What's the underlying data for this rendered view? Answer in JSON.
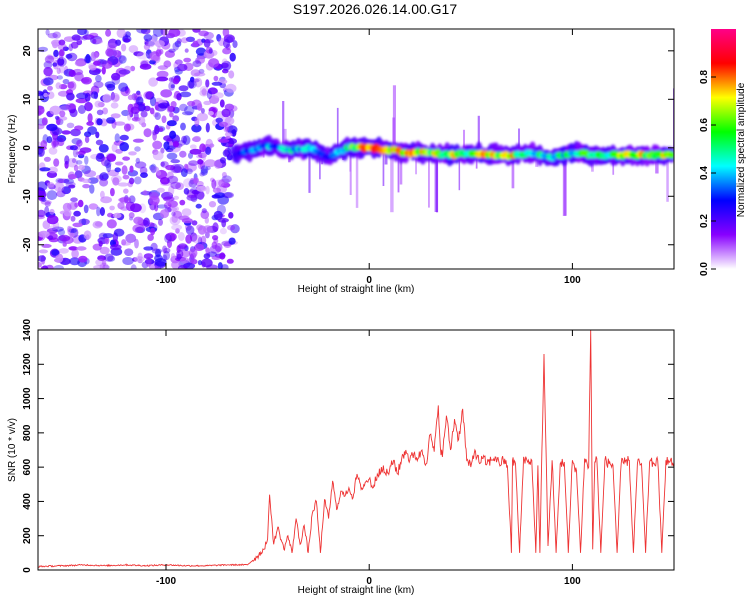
{
  "title": "S197.2026.026.14.00.G17",
  "chart_data": [
    {
      "type": "heatmap",
      "xlabel": "Height of straight line (km)",
      "ylabel": "Frequency (Hz)",
      "xlim": [
        -163,
        150
      ],
      "ylim": [
        -25,
        24.5
      ],
      "xticks": [
        "-100",
        "0",
        "100"
      ],
      "xtick_values": [
        -100,
        0,
        100
      ],
      "yticks": [
        "20",
        "10",
        "0",
        "-10",
        "-20"
      ],
      "ytick_values": [
        20,
        10,
        0,
        -10,
        -20
      ],
      "noise_region_x": [
        -163,
        -66
      ],
      "signal_track": {
        "x": [
          -66,
          -50,
          -40,
          -30,
          -20,
          -10,
          0,
          10,
          20,
          30,
          40,
          50,
          60,
          70,
          80,
          90,
          100,
          110,
          120,
          130,
          140,
          150
        ],
        "freq": [
          -1.5,
          0.5,
          -0.5,
          0,
          -2,
          0.2,
          0,
          -0.5,
          -1,
          -1,
          -1.5,
          -1,
          -1.5,
          -1.5,
          -1,
          -2,
          -1,
          -1.5,
          -1.5,
          -1.5,
          -1.5,
          -1.5
        ],
        "amplitude": [
          0.3,
          0.45,
          0.5,
          0.45,
          0.3,
          0.6,
          0.95,
          0.8,
          0.95,
          0.7,
          0.75,
          0.7,
          0.85,
          0.8,
          0.6,
          0.55,
          0.55,
          0.7,
          0.65,
          0.85,
          0.8,
          0.7
        ]
      },
      "colorbar": {
        "label": "Normalized spectral amplitude",
        "range": [
          0,
          1
        ],
        "ticks": [
          "0.0",
          "0.2",
          "0.4",
          "0.6",
          "0.8"
        ],
        "tick_values": [
          0,
          0.2,
          0.4,
          0.6,
          0.8
        ],
        "colors": [
          "#ffffff",
          "#8800ff",
          "#0000ff",
          "#00ffff",
          "#00ff00",
          "#ffff00",
          "#ff0000",
          "#ff0088"
        ]
      }
    },
    {
      "type": "line",
      "xlabel": "Height of straight line (km)",
      "ylabel": "SNR (10 * v/v)",
      "xlim": [
        -163,
        150
      ],
      "ylim": [
        0,
        1400
      ],
      "xticks": [
        "-100",
        "0",
        "100"
      ],
      "xtick_values": [
        -100,
        0,
        100
      ],
      "yticks": [
        "0",
        "200",
        "400",
        "600",
        "800",
        "1000",
        "1200",
        "1400"
      ],
      "ytick_values": [
        0,
        200,
        400,
        600,
        800,
        1000,
        1200,
        1400
      ],
      "color": "#ee3333",
      "series": [
        {
          "name": "SNR",
          "x": [
            -163,
            -150,
            -140,
            -130,
            -120,
            -110,
            -100,
            -90,
            -80,
            -70,
            -60,
            -55,
            -52,
            -50,
            -49,
            -47,
            -45,
            -42,
            -40,
            -38,
            -36,
            -34,
            -32,
            -30,
            -28,
            -26,
            -24,
            -22,
            -20,
            -18,
            -16,
            -14,
            -12,
            -10,
            -8,
            -6,
            -4,
            -2,
            0,
            2,
            4,
            6,
            8,
            10,
            12,
            14,
            16,
            18,
            20,
            22,
            24,
            26,
            28,
            30,
            32,
            34,
            35,
            36,
            38,
            40,
            42,
            44,
            46,
            48,
            50,
            52,
            54,
            56,
            58,
            60,
            62,
            64,
            66,
            68,
            70,
            70.5,
            72,
            74,
            76,
            78,
            80,
            82,
            83,
            84,
            86,
            88,
            90,
            92,
            94,
            96,
            98,
            100,
            102,
            104,
            106,
            108,
            109,
            110,
            111,
            112,
            114,
            116,
            118,
            120,
            122,
            124,
            126,
            128,
            130,
            132,
            134,
            136,
            138,
            140,
            142,
            144,
            146,
            148,
            150
          ],
          "values": [
            20,
            25,
            30,
            25,
            30,
            25,
            30,
            25,
            25,
            30,
            30,
            80,
            120,
            180,
            440,
            150,
            250,
            120,
            200,
            100,
            300,
            150,
            260,
            100,
            330,
            400,
            100,
            410,
            300,
            520,
            350,
            460,
            430,
            480,
            420,
            560,
            470,
            510,
            530,
            480,
            560,
            600,
            560,
            580,
            640,
            560,
            650,
            700,
            640,
            680,
            650,
            700,
            620,
            790,
            690,
            960,
            720,
            660,
            900,
            700,
            880,
            760,
            940,
            640,
            600,
            700,
            630,
            650,
            620,
            640,
            660,
            620,
            640,
            610,
            100,
            640,
            620,
            100,
            660,
            630,
            640,
            100,
            610,
            100,
            1260,
            140,
            640,
            100,
            620,
            630,
            100,
            640,
            580,
            100,
            650,
            600,
            1400,
            120,
            630,
            650,
            100,
            640,
            620,
            610,
            100,
            620,
            630,
            640,
            100,
            620,
            620,
            100,
            630,
            620,
            640,
            100,
            640,
            630,
            620
          ]
        }
      ]
    }
  ]
}
